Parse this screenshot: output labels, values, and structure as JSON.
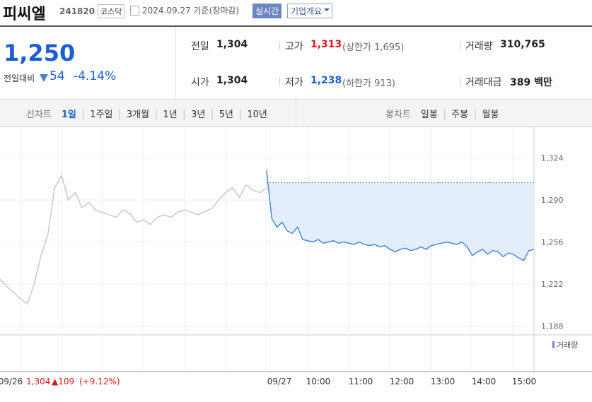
{
  "header": {
    "name": "피씨엘",
    "code": "241820",
    "market": "코스닥",
    "date": "2024.09.27 기준(장마감)",
    "realtime": "실시간",
    "overview": "기업개요"
  },
  "price": {
    "current": "1,250",
    "change_label": "전일대비",
    "change": "54",
    "change_pct": "-4.14%"
  },
  "stats": [
    [
      {
        "label": "전일",
        "value": "1,304"
      },
      {
        "label": "고가",
        "value": "1,313",
        "extra": "(상한가 1,695)"
      },
      {
        "label": "거래량",
        "value": "310,765"
      }
    ],
    [
      {
        "label": "시가",
        "value": "1,304"
      },
      {
        "label": "저가",
        "value": "1,238",
        "extra": "(하한가 913)"
      },
      {
        "label": "거래대금",
        "value": "389 백만"
      }
    ]
  ],
  "tabs": {
    "line_label": "선차트",
    "line": [
      "1일",
      "1주일",
      "3개월",
      "1년",
      "3년",
      "5년",
      "10년"
    ],
    "candle_label": "봉차트",
    "candle": [
      "일봉",
      "주봉",
      "월봉"
    ]
  },
  "chart": {
    "type": "line",
    "ylim": [
      1183,
      1349
    ],
    "yticks": [
      {
        "value": 1324,
        "label": "1,324"
      },
      {
        "value": 1290,
        "label": "1,290"
      },
      {
        "value": 1256,
        "label": "1,256"
      },
      {
        "value": 1222,
        "label": "1,222"
      },
      {
        "value": 1188,
        "label": "1,188"
      }
    ],
    "prev_close": 1304,
    "prev_day": {
      "color": "#c8c8c8",
      "values": [
        1226,
        1220,
        1215,
        1210,
        1206,
        1222,
        1245,
        1262,
        1300,
        1310,
        1290,
        1296,
        1284,
        1288,
        1282,
        1280,
        1278,
        1276,
        1282,
        1279,
        1272,
        1274,
        1270,
        1276,
        1278,
        1276,
        1280,
        1282,
        1280,
        1278,
        1281,
        1283,
        1290,
        1296,
        1300,
        1292,
        1302,
        1298,
        1296,
        1300
      ]
    },
    "today": {
      "color": "#4a86e0",
      "values": [
        1313,
        1275,
        1268,
        1272,
        1265,
        1263,
        1268,
        1258,
        1257,
        1256,
        1258,
        1255,
        1256,
        1257,
        1255,
        1256,
        1255,
        1254,
        1256,
        1254,
        1253,
        1254,
        1252,
        1253,
        1250,
        1248,
        1250,
        1251,
        1249,
        1250,
        1252,
        1250,
        1253,
        1254,
        1255,
        1256,
        1255,
        1254,
        1256,
        1252,
        1245,
        1248,
        1250,
        1246,
        1249,
        1248,
        1244,
        1247,
        1246,
        1243,
        1241,
        1249,
        1250
      ]
    },
    "volume_label": "거래량",
    "xlabels": [
      "09/26",
      "09/27",
      "10:00",
      "11:00",
      "12:00",
      "13:00",
      "14:00",
      "15:00"
    ],
    "prev_summary": {
      "close": "1,304",
      "change": "▲109",
      "pct": "(+9.12%)"
    }
  }
}
